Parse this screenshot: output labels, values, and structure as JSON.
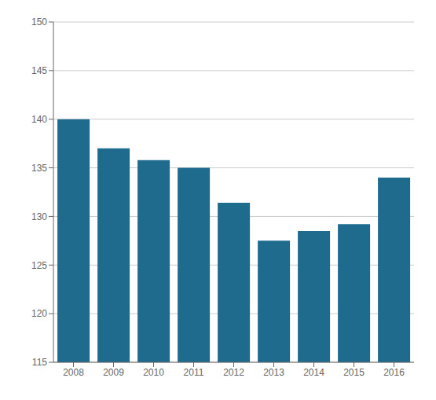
{
  "chart_data": {
    "type": "bar",
    "categories": [
      "2008",
      "2009",
      "2010",
      "2011",
      "2012",
      "2013",
      "2014",
      "2015",
      "2016"
    ],
    "values": [
      140.0,
      137.0,
      135.8,
      135.0,
      131.4,
      127.5,
      128.5,
      129.2,
      134.0
    ],
    "color": "#1f6b8e",
    "ylim": [
      115,
      150
    ],
    "yticks": [
      115,
      120,
      125,
      130,
      135,
      140,
      145,
      150
    ],
    "grid": true
  }
}
